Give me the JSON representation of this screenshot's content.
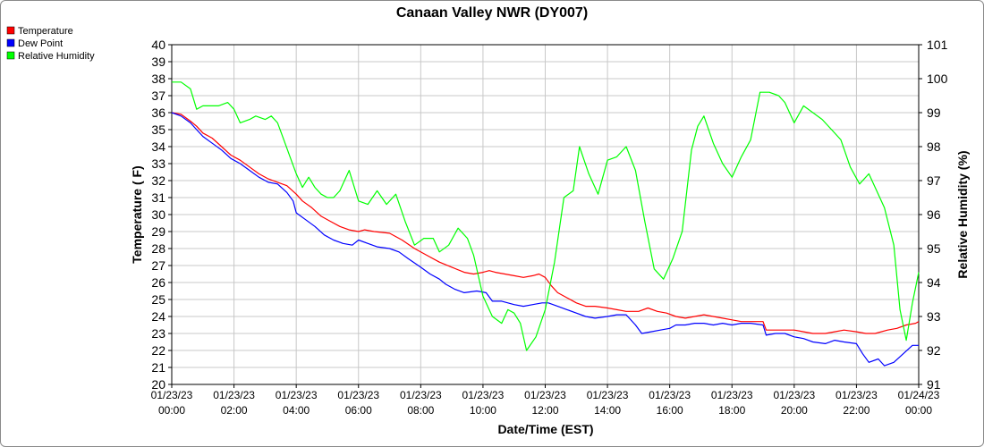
{
  "chart_data": {
    "type": "line",
    "title": "Canaan Valley NWR (DY007)",
    "xlabel": "Date/Time (EST)",
    "ylabel": "Temperature ( F)",
    "y2label": "Relative Humidity (%)",
    "ylim": [
      20,
      40
    ],
    "y2lim": [
      91,
      101
    ],
    "xlim": [
      0,
      24
    ],
    "grid": true,
    "legend_position": "top-left",
    "xticks": [
      {
        "h": 0,
        "date": "01/23/23",
        "time": "00:00"
      },
      {
        "h": 2,
        "date": "01/23/23",
        "time": "02:00"
      },
      {
        "h": 4,
        "date": "01/23/23",
        "time": "04:00"
      },
      {
        "h": 6,
        "date": "01/23/23",
        "time": "06:00"
      },
      {
        "h": 8,
        "date": "01/23/23",
        "time": "08:00"
      },
      {
        "h": 10,
        "date": "01/23/23",
        "time": "10:00"
      },
      {
        "h": 12,
        "date": "01/23/23",
        "time": "12:00"
      },
      {
        "h": 14,
        "date": "01/23/23",
        "time": "14:00"
      },
      {
        "h": 16,
        "date": "01/23/23",
        "time": "16:00"
      },
      {
        "h": 18,
        "date": "01/23/23",
        "time": "18:00"
      },
      {
        "h": 20,
        "date": "01/23/23",
        "time": "20:00"
      },
      {
        "h": 22,
        "date": "01/23/23",
        "time": "22:00"
      },
      {
        "h": 24,
        "date": "01/24/23",
        "time": "00:00"
      }
    ],
    "series": [
      {
        "name": "Temperature",
        "color": "#ff0000",
        "axis": "left",
        "points": [
          [
            0,
            36
          ],
          [
            0.3,
            35.9
          ],
          [
            0.6,
            35.5
          ],
          [
            0.8,
            35.2
          ],
          [
            1.0,
            34.8
          ],
          [
            1.3,
            34.5
          ],
          [
            1.6,
            34.0
          ],
          [
            1.9,
            33.5
          ],
          [
            2.2,
            33.2
          ],
          [
            2.5,
            32.8
          ],
          [
            2.8,
            32.4
          ],
          [
            3.1,
            32.1
          ],
          [
            3.4,
            31.9
          ],
          [
            3.7,
            31.7
          ],
          [
            4.0,
            31.2
          ],
          [
            4.2,
            30.8
          ],
          [
            4.5,
            30.4
          ],
          [
            4.8,
            29.9
          ],
          [
            5.1,
            29.6
          ],
          [
            5.4,
            29.3
          ],
          [
            5.7,
            29.1
          ],
          [
            6.0,
            29.0
          ],
          [
            6.2,
            29.1
          ],
          [
            6.5,
            29.0
          ],
          [
            7.0,
            28.9
          ],
          [
            7.4,
            28.5
          ],
          [
            7.8,
            28.0
          ],
          [
            8.2,
            27.6
          ],
          [
            8.6,
            27.2
          ],
          [
            9.0,
            26.9
          ],
          [
            9.4,
            26.6
          ],
          [
            9.7,
            26.5
          ],
          [
            10.0,
            26.6
          ],
          [
            10.2,
            26.7
          ],
          [
            10.4,
            26.6
          ],
          [
            10.7,
            26.5
          ],
          [
            11.0,
            26.4
          ],
          [
            11.3,
            26.3
          ],
          [
            11.6,
            26.4
          ],
          [
            11.8,
            26.5
          ],
          [
            12.0,
            26.3
          ],
          [
            12.2,
            25.8
          ],
          [
            12.4,
            25.4
          ],
          [
            12.7,
            25.1
          ],
          [
            13.0,
            24.8
          ],
          [
            13.3,
            24.6
          ],
          [
            13.6,
            24.6
          ],
          [
            14.0,
            24.5
          ],
          [
            14.3,
            24.4
          ],
          [
            14.6,
            24.3
          ],
          [
            15.0,
            24.3
          ],
          [
            15.3,
            24.5
          ],
          [
            15.6,
            24.3
          ],
          [
            15.9,
            24.2
          ],
          [
            16.2,
            24.0
          ],
          [
            16.5,
            23.9
          ],
          [
            16.8,
            24.0
          ],
          [
            17.1,
            24.1
          ],
          [
            17.4,
            24.0
          ],
          [
            17.7,
            23.9
          ],
          [
            18.0,
            23.8
          ],
          [
            18.3,
            23.7
          ],
          [
            18.6,
            23.7
          ],
          [
            19.0,
            23.7
          ],
          [
            19.1,
            23.2
          ],
          [
            19.5,
            23.2
          ],
          [
            20.0,
            23.2
          ],
          [
            20.3,
            23.1
          ],
          [
            20.6,
            23.0
          ],
          [
            21.0,
            23.0
          ],
          [
            21.3,
            23.1
          ],
          [
            21.6,
            23.2
          ],
          [
            22.0,
            23.1
          ],
          [
            22.3,
            23.0
          ],
          [
            22.6,
            23.0
          ],
          [
            23.0,
            23.2
          ],
          [
            23.3,
            23.3
          ],
          [
            23.6,
            23.5
          ],
          [
            23.9,
            23.6
          ],
          [
            24.0,
            23.7
          ]
        ]
      },
      {
        "name": "Dew Point",
        "color": "#0000ff",
        "axis": "left",
        "points": [
          [
            0,
            36
          ],
          [
            0.3,
            35.8
          ],
          [
            0.6,
            35.4
          ],
          [
            0.8,
            35.0
          ],
          [
            1.0,
            34.6
          ],
          [
            1.3,
            34.2
          ],
          [
            1.6,
            33.8
          ],
          [
            1.9,
            33.3
          ],
          [
            2.2,
            33.0
          ],
          [
            2.5,
            32.6
          ],
          [
            2.8,
            32.2
          ],
          [
            3.1,
            31.9
          ],
          [
            3.4,
            31.8
          ],
          [
            3.7,
            31.3
          ],
          [
            3.9,
            30.8
          ],
          [
            4.0,
            30.1
          ],
          [
            4.3,
            29.7
          ],
          [
            4.6,
            29.3
          ],
          [
            4.9,
            28.8
          ],
          [
            5.2,
            28.5
          ],
          [
            5.5,
            28.3
          ],
          [
            5.8,
            28.2
          ],
          [
            6.0,
            28.5
          ],
          [
            6.3,
            28.3
          ],
          [
            6.6,
            28.1
          ],
          [
            7.0,
            28.0
          ],
          [
            7.3,
            27.8
          ],
          [
            7.6,
            27.4
          ],
          [
            8.0,
            26.9
          ],
          [
            8.3,
            26.5
          ],
          [
            8.6,
            26.2
          ],
          [
            8.8,
            25.9
          ],
          [
            9.1,
            25.6
          ],
          [
            9.4,
            25.4
          ],
          [
            9.8,
            25.5
          ],
          [
            10.1,
            25.4
          ],
          [
            10.3,
            24.9
          ],
          [
            10.6,
            24.9
          ],
          [
            11.0,
            24.7
          ],
          [
            11.3,
            24.6
          ],
          [
            11.6,
            24.7
          ],
          [
            11.9,
            24.8
          ],
          [
            12.1,
            24.8
          ],
          [
            12.4,
            24.6
          ],
          [
            12.7,
            24.4
          ],
          [
            13.0,
            24.2
          ],
          [
            13.3,
            24.0
          ],
          [
            13.6,
            23.9
          ],
          [
            14.0,
            24.0
          ],
          [
            14.3,
            24.1
          ],
          [
            14.6,
            24.1
          ],
          [
            14.9,
            23.5
          ],
          [
            15.1,
            23.0
          ],
          [
            15.4,
            23.1
          ],
          [
            15.7,
            23.2
          ],
          [
            16.0,
            23.3
          ],
          [
            16.2,
            23.5
          ],
          [
            16.5,
            23.5
          ],
          [
            16.8,
            23.6
          ],
          [
            17.1,
            23.6
          ],
          [
            17.4,
            23.5
          ],
          [
            17.7,
            23.6
          ],
          [
            18.0,
            23.5
          ],
          [
            18.3,
            23.6
          ],
          [
            18.6,
            23.6
          ],
          [
            19.0,
            23.5
          ],
          [
            19.1,
            22.9
          ],
          [
            19.4,
            23.0
          ],
          [
            19.7,
            23.0
          ],
          [
            20.0,
            22.8
          ],
          [
            20.3,
            22.7
          ],
          [
            20.6,
            22.5
          ],
          [
            21.0,
            22.4
          ],
          [
            21.3,
            22.6
          ],
          [
            21.6,
            22.5
          ],
          [
            22.0,
            22.4
          ],
          [
            22.2,
            21.8
          ],
          [
            22.4,
            21.3
          ],
          [
            22.7,
            21.5
          ],
          [
            22.9,
            21.1
          ],
          [
            23.2,
            21.3
          ],
          [
            23.5,
            21.8
          ],
          [
            23.8,
            22.3
          ],
          [
            24.0,
            22.3
          ]
        ]
      },
      {
        "name": "Relative Humidity",
        "color": "#00ff00",
        "axis": "right",
        "points": [
          [
            0,
            99.9
          ],
          [
            0.3,
            99.9
          ],
          [
            0.6,
            99.7
          ],
          [
            0.8,
            99.1
          ],
          [
            1.0,
            99.2
          ],
          [
            1.5,
            99.2
          ],
          [
            1.8,
            99.3
          ],
          [
            2.0,
            99.1
          ],
          [
            2.2,
            98.7
          ],
          [
            2.5,
            98.8
          ],
          [
            2.7,
            98.9
          ],
          [
            3.0,
            98.8
          ],
          [
            3.2,
            98.9
          ],
          [
            3.4,
            98.7
          ],
          [
            3.6,
            98.2
          ],
          [
            3.8,
            97.7
          ],
          [
            4.0,
            97.2
          ],
          [
            4.2,
            96.8
          ],
          [
            4.4,
            97.1
          ],
          [
            4.6,
            96.8
          ],
          [
            4.8,
            96.6
          ],
          [
            5.0,
            96.5
          ],
          [
            5.2,
            96.5
          ],
          [
            5.4,
            96.7
          ],
          [
            5.7,
            97.3
          ],
          [
            6.0,
            96.4
          ],
          [
            6.3,
            96.3
          ],
          [
            6.6,
            96.7
          ],
          [
            6.9,
            96.3
          ],
          [
            7.2,
            96.6
          ],
          [
            7.5,
            95.8
          ],
          [
            7.8,
            95.1
          ],
          [
            8.1,
            95.3
          ],
          [
            8.4,
            95.3
          ],
          [
            8.6,
            94.9
          ],
          [
            8.9,
            95.1
          ],
          [
            9.2,
            95.6
          ],
          [
            9.5,
            95.3
          ],
          [
            9.7,
            94.8
          ],
          [
            10.0,
            93.6
          ],
          [
            10.3,
            93.0
          ],
          [
            10.6,
            92.8
          ],
          [
            10.8,
            93.2
          ],
          [
            11.0,
            93.1
          ],
          [
            11.2,
            92.8
          ],
          [
            11.4,
            92.0
          ],
          [
            11.7,
            92.4
          ],
          [
            12.0,
            93.2
          ],
          [
            12.3,
            94.6
          ],
          [
            12.6,
            96.5
          ],
          [
            12.9,
            96.7
          ],
          [
            13.1,
            98.0
          ],
          [
            13.4,
            97.2
          ],
          [
            13.7,
            96.6
          ],
          [
            14.0,
            97.6
          ],
          [
            14.3,
            97.7
          ],
          [
            14.6,
            98.0
          ],
          [
            14.9,
            97.3
          ],
          [
            15.2,
            95.8
          ],
          [
            15.5,
            94.4
          ],
          [
            15.8,
            94.1
          ],
          [
            16.1,
            94.7
          ],
          [
            16.4,
            95.5
          ],
          [
            16.7,
            97.9
          ],
          [
            16.9,
            98.6
          ],
          [
            17.1,
            98.9
          ],
          [
            17.4,
            98.1
          ],
          [
            17.7,
            97.5
          ],
          [
            18.0,
            97.1
          ],
          [
            18.3,
            97.7
          ],
          [
            18.6,
            98.2
          ],
          [
            18.9,
            99.6
          ],
          [
            19.2,
            99.6
          ],
          [
            19.5,
            99.5
          ],
          [
            19.7,
            99.3
          ],
          [
            20.0,
            98.7
          ],
          [
            20.3,
            99.2
          ],
          [
            20.6,
            99.0
          ],
          [
            20.9,
            98.8
          ],
          [
            21.2,
            98.5
          ],
          [
            21.5,
            98.2
          ],
          [
            21.8,
            97.4
          ],
          [
            22.1,
            96.9
          ],
          [
            22.4,
            97.2
          ],
          [
            22.7,
            96.6
          ],
          [
            22.9,
            96.2
          ],
          [
            23.2,
            95.1
          ],
          [
            23.4,
            93.2
          ],
          [
            23.6,
            92.3
          ],
          [
            23.8,
            93.4
          ],
          [
            24.0,
            94.3
          ]
        ]
      }
    ]
  }
}
